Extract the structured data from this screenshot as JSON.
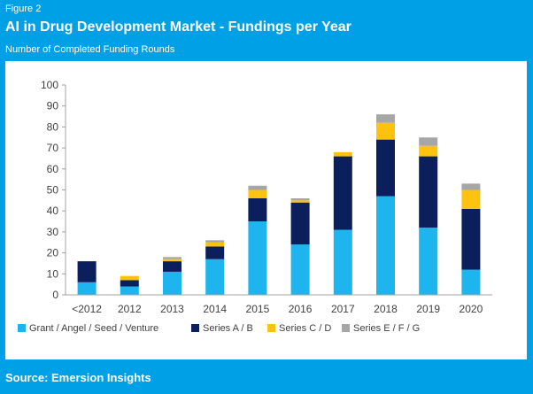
{
  "header": {
    "figure_label": "Figure 2",
    "title": "AI in Drug Development Market - Fundings per Year",
    "subtitle": "Number of Completed Funding Rounds"
  },
  "footer": {
    "source": "Source: Emersion Insights"
  },
  "colors": {
    "background": "#00a0e6",
    "grant": "#1eb4ee",
    "seriesAB": "#0a1f5c",
    "seriesCD": "#ffc20e",
    "seriesEFG": "#a6a6a6"
  },
  "chart_data": {
    "type": "bar",
    "stacked": true,
    "categories": [
      "<2012",
      "2012",
      "2013",
      "2014",
      "2015",
      "2016",
      "2017",
      "2018",
      "2019",
      "2020"
    ],
    "series": [
      {
        "name": "Grant / Angel / Seed / Venture",
        "color": "#1eb4ee",
        "values": [
          6,
          4,
          11,
          17,
          35,
          24,
          31,
          47,
          32,
          12
        ]
      },
      {
        "name": "Series A / B",
        "color": "#0a1f5c",
        "values": [
          10,
          3,
          5,
          6,
          11,
          20,
          35,
          27,
          34,
          29
        ]
      },
      {
        "name": "Series C / D",
        "color": "#ffc20e",
        "values": [
          0,
          2,
          1,
          2,
          4,
          1,
          2,
          8,
          5,
          9
        ]
      },
      {
        "name": "Series E / F / G",
        "color": "#a6a6a6",
        "values": [
          0,
          0,
          1,
          1,
          2,
          1,
          0,
          4,
          4,
          3
        ]
      }
    ],
    "ylim": [
      0,
      100
    ],
    "yticks": [
      0,
      10,
      20,
      30,
      40,
      50,
      60,
      70,
      80,
      90,
      100
    ],
    "grid": false,
    "legend_position": "bottom"
  }
}
